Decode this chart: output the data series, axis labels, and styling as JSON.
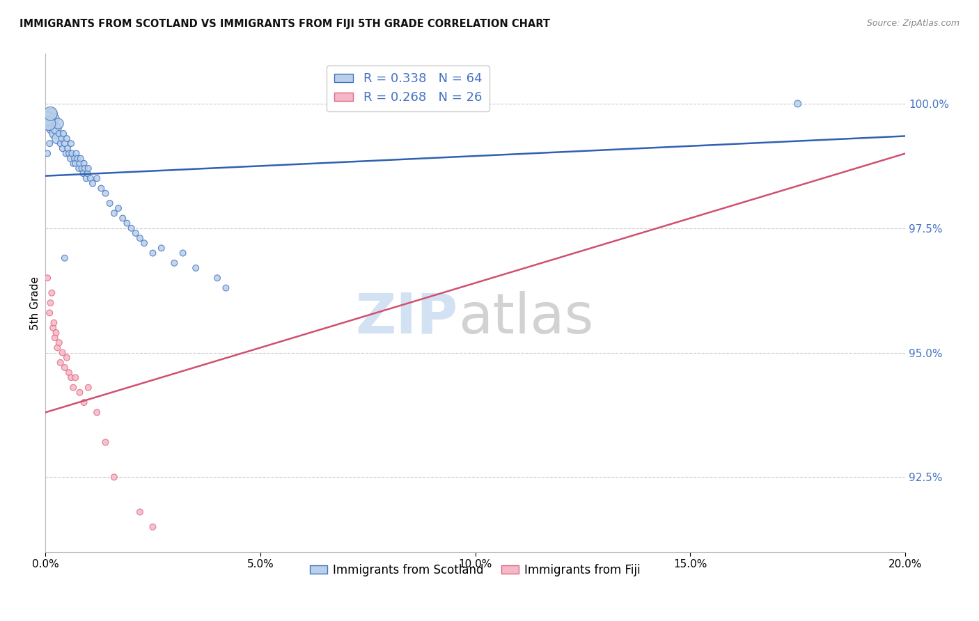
{
  "title": "IMMIGRANTS FROM SCOTLAND VS IMMIGRANTS FROM FIJI 5TH GRADE CORRELATION CHART",
  "source": "Source: ZipAtlas.com",
  "ylabel": "5th Grade",
  "xmin": 0.0,
  "xmax": 20.0,
  "ymin": 91.0,
  "ymax": 101.0,
  "yticks": [
    92.5,
    95.0,
    97.5,
    100.0
  ],
  "ytick_labels": [
    "92.5%",
    "95.0%",
    "97.5%",
    "100.0%"
  ],
  "xticks": [
    0.0,
    5.0,
    10.0,
    15.0,
    20.0
  ],
  "xtick_labels": [
    "0.0%",
    "5.0%",
    "10.0%",
    "15.0%",
    "20.0%"
  ],
  "scotland_color": "#b8d0e8",
  "fiji_color": "#f5b8c8",
  "scotland_edge_color": "#4472c4",
  "fiji_edge_color": "#e06880",
  "scotland_line_color": "#3060b0",
  "fiji_line_color": "#d05070",
  "legend_scotland_label": "R = 0.338   N = 64",
  "legend_fiji_label": "R = 0.268   N = 26",
  "scotland_line_x0": 0.0,
  "scotland_line_x1": 20.0,
  "scotland_line_y0": 98.55,
  "scotland_line_y1": 99.35,
  "fiji_line_x0": 0.0,
  "fiji_line_x1": 20.0,
  "fiji_line_y0": 93.8,
  "fiji_line_y1": 99.0,
  "scotland_x": [
    0.05,
    0.1,
    0.15,
    0.15,
    0.18,
    0.2,
    0.22,
    0.25,
    0.28,
    0.3,
    0.32,
    0.35,
    0.38,
    0.4,
    0.42,
    0.45,
    0.48,
    0.5,
    0.52,
    0.55,
    0.58,
    0.6,
    0.62,
    0.65,
    0.68,
    0.7,
    0.72,
    0.75,
    0.78,
    0.8,
    0.82,
    0.85,
    0.88,
    0.9,
    0.92,
    0.95,
    0.98,
    1.0,
    1.05,
    1.1,
    1.2,
    1.3,
    1.4,
    1.5,
    1.6,
    1.7,
    1.8,
    1.9,
    2.0,
    2.1,
    2.2,
    2.3,
    2.5,
    2.7,
    3.0,
    3.2,
    3.5,
    4.0,
    4.2,
    0.05,
    0.08,
    0.12,
    0.45,
    17.5
  ],
  "scotland_y": [
    99.0,
    99.2,
    99.5,
    99.8,
    99.6,
    99.7,
    99.4,
    99.5,
    99.3,
    99.6,
    99.4,
    99.2,
    99.3,
    99.1,
    99.4,
    99.2,
    99.0,
    99.3,
    99.1,
    99.0,
    98.9,
    99.2,
    99.0,
    98.8,
    98.9,
    98.8,
    99.0,
    98.9,
    98.7,
    98.8,
    98.9,
    98.7,
    98.6,
    98.8,
    98.7,
    98.5,
    98.6,
    98.7,
    98.5,
    98.4,
    98.5,
    98.3,
    98.2,
    98.0,
    97.8,
    97.9,
    97.7,
    97.6,
    97.5,
    97.4,
    97.3,
    97.2,
    97.0,
    97.1,
    96.8,
    97.0,
    96.7,
    96.5,
    96.3,
    99.7,
    99.6,
    99.8,
    96.9,
    100.0
  ],
  "scotland_sizes": [
    40,
    40,
    120,
    120,
    120,
    120,
    120,
    120,
    120,
    120,
    40,
    40,
    40,
    40,
    40,
    40,
    40,
    40,
    40,
    40,
    40,
    40,
    40,
    40,
    40,
    40,
    40,
    40,
    40,
    40,
    40,
    40,
    40,
    40,
    40,
    40,
    40,
    40,
    40,
    40,
    40,
    40,
    40,
    40,
    40,
    40,
    40,
    40,
    40,
    40,
    40,
    40,
    40,
    40,
    40,
    40,
    40,
    40,
    40,
    200,
    200,
    200,
    40,
    50
  ],
  "fiji_x": [
    0.05,
    0.1,
    0.12,
    0.15,
    0.18,
    0.2,
    0.22,
    0.25,
    0.28,
    0.32,
    0.35,
    0.4,
    0.45,
    0.5,
    0.55,
    0.6,
    0.65,
    0.7,
    0.8,
    0.9,
    1.0,
    1.2,
    1.4,
    1.6,
    2.2,
    2.5
  ],
  "fiji_y": [
    96.5,
    95.8,
    96.0,
    96.2,
    95.5,
    95.6,
    95.3,
    95.4,
    95.1,
    95.2,
    94.8,
    95.0,
    94.7,
    94.9,
    94.6,
    94.5,
    94.3,
    94.5,
    94.2,
    94.0,
    94.3,
    93.8,
    93.2,
    92.5,
    91.8,
    91.5
  ],
  "fiji_sizes": [
    40,
    40,
    40,
    40,
    40,
    40,
    40,
    40,
    40,
    40,
    40,
    40,
    40,
    40,
    40,
    40,
    40,
    40,
    40,
    40,
    40,
    40,
    40,
    40,
    40,
    40
  ]
}
